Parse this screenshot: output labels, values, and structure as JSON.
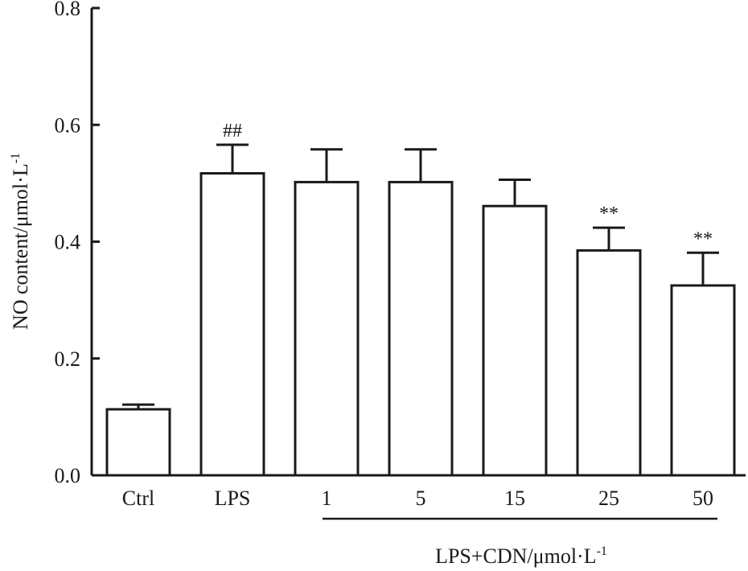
{
  "chart_data": {
    "type": "bar",
    "categories": [
      "Ctrl",
      "LPS",
      "1",
      "5",
      "15",
      "25",
      "50"
    ],
    "values": [
      0.113,
      0.517,
      0.502,
      0.502,
      0.461,
      0.385,
      0.325
    ],
    "errors": [
      0.008,
      0.049,
      0.056,
      0.056,
      0.045,
      0.039,
      0.056
    ],
    "annotations": [
      "",
      "##",
      "",
      "",
      "",
      "**",
      "**"
    ],
    "ylabel": "NO content/μmol·L",
    "ylabel_superscript": "-1",
    "group_label": "LPS+CDN/μmol·L",
    "group_label_superscript": "-1",
    "group_range": [
      "1",
      "50"
    ],
    "ylim": [
      0,
      0.8
    ],
    "yticks": [
      "0.0",
      "0.2",
      "0.4",
      "0.6",
      "0.8"
    ],
    "ytick_values": [
      0,
      0.2,
      0.4,
      0.6,
      0.8
    ],
    "grid": false,
    "colors": {
      "bar_fill": "#ffffff",
      "stroke": "#1a1a1a"
    }
  }
}
